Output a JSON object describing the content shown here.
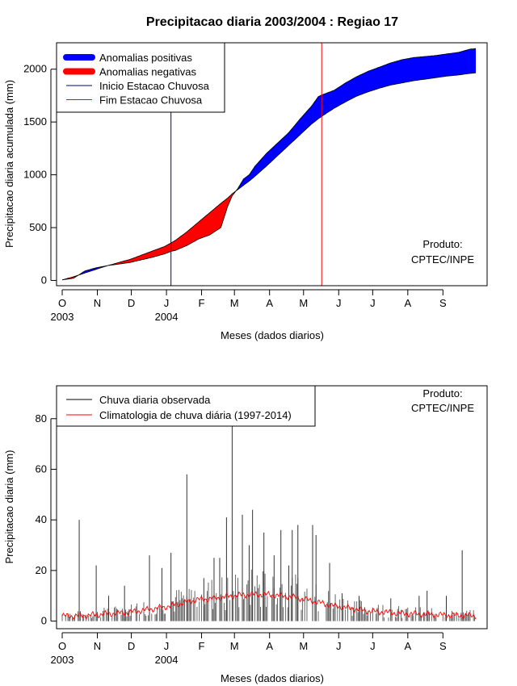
{
  "chart_data": [
    {
      "type": "area",
      "title": "Precipitacao diaria 2003/2004 : Regiao 17",
      "xlabel": "Meses (dados diarios)",
      "ylabel": "Precipitacao diaria acumulada (mm)",
      "ylim": [
        -50,
        2250
      ],
      "xlim_days": [
        -5,
        375
      ],
      "yticks": [
        0,
        500,
        1000,
        1500,
        2000
      ],
      "month_ticks": [
        {
          "label": "O",
          "day": 0
        },
        {
          "label": "N",
          "day": 31
        },
        {
          "label": "D",
          "day": 61
        },
        {
          "label": "J",
          "day": 92
        },
        {
          "label": "F",
          "day": 123
        },
        {
          "label": "M",
          "day": 152
        },
        {
          "label": "A",
          "day": 183
        },
        {
          "label": "M",
          "day": 213
        },
        {
          "label": "J",
          "day": 244
        },
        {
          "label": "J",
          "day": 274
        },
        {
          "label": "A",
          "day": 305
        },
        {
          "label": "S",
          "day": 336
        }
      ],
      "year_labels": [
        {
          "label": "2003",
          "day": 0
        },
        {
          "label": "2004",
          "day": 92
        }
      ],
      "rainy_season_start_day": 96,
      "rainy_season_end_day": 229,
      "observed_cumulative": {
        "days": [
          0,
          10,
          20,
          30,
          40,
          50,
          60,
          70,
          80,
          90,
          96,
          100,
          110,
          120,
          130,
          140,
          146,
          150,
          155,
          160,
          165,
          170,
          180,
          190,
          200,
          210,
          220,
          226,
          230,
          240,
          250,
          260,
          270,
          280,
          290,
          300,
          310,
          320,
          330,
          340,
          350,
          360,
          365
        ],
        "values": [
          5,
          20,
          90,
          120,
          140,
          155,
          170,
          195,
          220,
          250,
          275,
          285,
          330,
          390,
          430,
          500,
          700,
          800,
          870,
          960,
          1000,
          1080,
          1200,
          1300,
          1400,
          1530,
          1650,
          1740,
          1760,
          1800,
          1870,
          1930,
          1980,
          2020,
          2060,
          2090,
          2110,
          2120,
          2130,
          2145,
          2160,
          2190,
          2195
        ]
      },
      "climatology_cumulative": {
        "days": [
          0,
          10,
          20,
          30,
          40,
          50,
          60,
          70,
          80,
          90,
          96,
          100,
          110,
          120,
          130,
          140,
          146,
          150,
          155,
          160,
          165,
          170,
          180,
          190,
          200,
          210,
          220,
          226,
          230,
          240,
          250,
          260,
          270,
          280,
          290,
          300,
          310,
          320,
          330,
          340,
          350,
          360,
          365
        ],
        "values": [
          5,
          35,
          70,
          105,
          140,
          170,
          200,
          240,
          280,
          320,
          355,
          380,
          460,
          550,
          640,
          730,
          780,
          820,
          860,
          900,
          940,
          985,
          1080,
          1180,
          1280,
          1380,
          1480,
          1530,
          1560,
          1630,
          1690,
          1745,
          1785,
          1820,
          1850,
          1870,
          1890,
          1905,
          1920,
          1935,
          1945,
          1960,
          1965
        ]
      },
      "legend": {
        "position": "top-left",
        "entries": [
          {
            "label": "Anomalias positivas",
            "color": "#0000ff",
            "style": "thick"
          },
          {
            "label": "Anomalias negativas",
            "color": "#ff0000",
            "style": "thick"
          },
          {
            "label": "Inicio Estacao Chuvosa",
            "color": "#00008b",
            "style": "line"
          },
          {
            "label": "Fim Estacao Chuvosa",
            "color": "#ff0000",
            "style": "line"
          }
        ]
      },
      "annotation": [
        "Produto:",
        "CPTEC/INPE"
      ]
    },
    {
      "type": "bar",
      "xlabel": "Meses (dados diarios)",
      "ylabel": "Precipitacao diaria (mm)",
      "ylim": [
        -3,
        93
      ],
      "xlim_days": [
        -5,
        375
      ],
      "yticks": [
        0,
        20,
        40,
        60,
        80
      ],
      "month_ticks": [
        {
          "label": "O",
          "day": 0
        },
        {
          "label": "N",
          "day": 31
        },
        {
          "label": "D",
          "day": 61
        },
        {
          "label": "J",
          "day": 92
        },
        {
          "label": "F",
          "day": 123
        },
        {
          "label": "M",
          "day": 152
        },
        {
          "label": "A",
          "day": 183
        },
        {
          "label": "M",
          "day": 213
        },
        {
          "label": "J",
          "day": 244
        },
        {
          "label": "J",
          "day": 274
        },
        {
          "label": "A",
          "day": 305
        },
        {
          "label": "S",
          "day": 336
        }
      ],
      "year_labels": [
        {
          "label": "2003",
          "day": 0
        },
        {
          "label": "2004",
          "day": 92
        }
      ],
      "observed_daily": [
        {
          "day": 15,
          "value": 40
        },
        {
          "day": 30,
          "value": 22
        },
        {
          "day": 41,
          "value": 10
        },
        {
          "day": 55,
          "value": 14
        },
        {
          "day": 77,
          "value": 26
        },
        {
          "day": 88,
          "value": 21
        },
        {
          "day": 96,
          "value": 27
        },
        {
          "day": 110,
          "value": 58
        },
        {
          "day": 125,
          "value": 17
        },
        {
          "day": 134,
          "value": 25
        },
        {
          "day": 139,
          "value": 25
        },
        {
          "day": 145,
          "value": 41
        },
        {
          "day": 150,
          "value": 80
        },
        {
          "day": 159,
          "value": 42
        },
        {
          "day": 165,
          "value": 30
        },
        {
          "day": 168,
          "value": 44
        },
        {
          "day": 178,
          "value": 35
        },
        {
          "day": 187,
          "value": 26
        },
        {
          "day": 193,
          "value": 36
        },
        {
          "day": 200,
          "value": 22
        },
        {
          "day": 203,
          "value": 36
        },
        {
          "day": 208,
          "value": 38
        },
        {
          "day": 221,
          "value": 38
        },
        {
          "day": 224,
          "value": 34
        },
        {
          "day": 236,
          "value": 23
        },
        {
          "day": 247,
          "value": 11
        },
        {
          "day": 262,
          "value": 10
        },
        {
          "day": 290,
          "value": 9
        },
        {
          "day": 315,
          "value": 10
        },
        {
          "day": 322,
          "value": 12
        },
        {
          "day": 339,
          "value": 10
        },
        {
          "day": 353,
          "value": 28
        }
      ],
      "climatology_daily": {
        "days": [
          0,
          15,
          30,
          45,
          60,
          75,
          90,
          105,
          120,
          135,
          150,
          165,
          180,
          195,
          210,
          225,
          240,
          255,
          270,
          285,
          300,
          315,
          330,
          345,
          360,
          365
        ],
        "values": [
          2,
          2,
          2.5,
          3,
          3.5,
          4.5,
          5.5,
          7,
          8.5,
          9,
          10,
          10.5,
          10.5,
          10,
          9,
          7.5,
          6,
          5,
          4,
          3.5,
          3,
          2.8,
          2.5,
          2.3,
          2.2,
          2.2
        ]
      },
      "legend": {
        "position": "top-left",
        "entries": [
          {
            "label": "Chuva diaria observada",
            "color": "#000000",
            "style": "line"
          },
          {
            "label": "Climatologia de chuva diária (1997-2014)",
            "color": "#ff0000",
            "style": "line"
          }
        ]
      },
      "annotation": [
        "Produto:",
        "CPTEC/INPE"
      ]
    }
  ]
}
